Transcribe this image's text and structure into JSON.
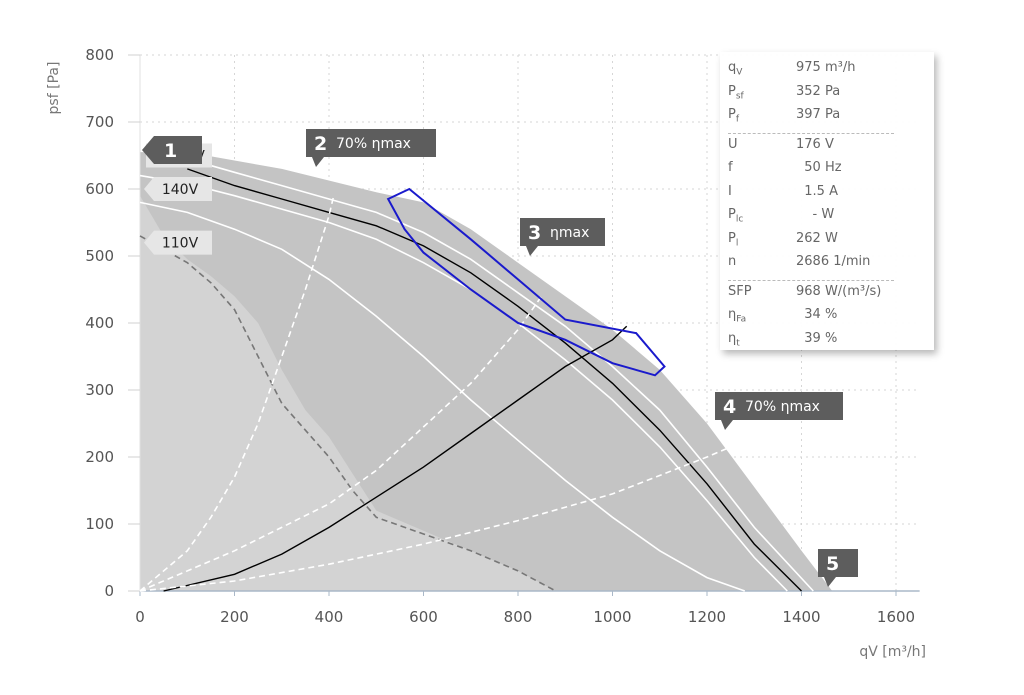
{
  "chart_data": {
    "type": "line",
    "xlabel": "qV [m³/h]",
    "ylabel": "psf [Pa]",
    "xlim": [
      0,
      1650
    ],
    "ylim": [
      0,
      800
    ],
    "x_ticks": [
      0,
      200,
      400,
      600,
      800,
      1000,
      1200,
      1400,
      1600
    ],
    "y_ticks": [
      0,
      100,
      200,
      300,
      400,
      500,
      600,
      700,
      800
    ],
    "grid": true,
    "operating_region": [
      [
        0,
        655
      ],
      [
        100,
        655
      ],
      [
        300,
        630
      ],
      [
        500,
        595
      ],
      [
        600,
        580
      ],
      [
        700,
        540
      ],
      [
        800,
        490
      ],
      [
        900,
        440
      ],
      [
        1000,
        390
      ],
      [
        1100,
        330
      ],
      [
        1200,
        250
      ],
      [
        1300,
        155
      ],
      [
        1400,
        60
      ],
      [
        1465,
        0
      ],
      [
        0,
        0
      ]
    ],
    "low_region": [
      [
        0,
        590
      ],
      [
        50,
        530
      ],
      [
        100,
        495
      ],
      [
        150,
        470
      ],
      [
        200,
        440
      ],
      [
        250,
        400
      ],
      [
        300,
        330
      ],
      [
        350,
        270
      ],
      [
        400,
        230
      ],
      [
        450,
        175
      ],
      [
        500,
        120
      ],
      [
        600,
        90
      ],
      [
        700,
        60
      ],
      [
        800,
        30
      ],
      [
        880,
        0
      ],
      [
        0,
        0
      ]
    ],
    "series": [
      {
        "name": "",
        "color": "#000000",
        "points": [
          [
            100,
            630
          ],
          [
            200,
            605
          ],
          [
            300,
            585
          ],
          [
            400,
            565
          ],
          [
            500,
            545
          ],
          [
            600,
            515
          ],
          [
            700,
            475
          ],
          [
            800,
            425
          ],
          [
            900,
            370
          ],
          [
            1000,
            310
          ],
          [
            1100,
            240
          ],
          [
            1200,
            160
          ],
          [
            1300,
            70
          ],
          [
            1400,
            0
          ]
        ]
      },
      {
        "name": "",
        "color": "#ffffff",
        "points": [
          [
            100,
            645
          ],
          [
            200,
            625
          ],
          [
            300,
            605
          ],
          [
            400,
            585
          ],
          [
            500,
            565
          ],
          [
            600,
            535
          ],
          [
            700,
            495
          ],
          [
            800,
            445
          ],
          [
            900,
            395
          ],
          [
            1000,
            335
          ],
          [
            1100,
            270
          ],
          [
            1200,
            185
          ],
          [
            1300,
            95
          ],
          [
            1425,
            0
          ]
        ]
      },
      {
        "name": "",
        "color": "#ffffff",
        "points": [
          [
            0,
            620
          ],
          [
            100,
            608
          ],
          [
            200,
            590
          ],
          [
            300,
            570
          ],
          [
            400,
            550
          ],
          [
            500,
            525
          ],
          [
            600,
            490
          ],
          [
            700,
            450
          ],
          [
            800,
            400
          ],
          [
            900,
            345
          ],
          [
            1000,
            285
          ],
          [
            1100,
            215
          ],
          [
            1200,
            135
          ],
          [
            1300,
            50
          ],
          [
            1370,
            0
          ]
        ]
      },
      {
        "name": "",
        "color": "#ffffff",
        "points": [
          [
            0,
            580
          ],
          [
            100,
            565
          ],
          [
            200,
            540
          ],
          [
            300,
            510
          ],
          [
            400,
            465
          ],
          [
            500,
            410
          ],
          [
            600,
            350
          ],
          [
            700,
            285
          ],
          [
            800,
            225
          ],
          [
            900,
            165
          ],
          [
            1000,
            110
          ],
          [
            1100,
            60
          ],
          [
            1200,
            20
          ],
          [
            1280,
            0
          ]
        ]
      },
      {
        "name": "",
        "color": "#777777",
        "dashed": true,
        "points": [
          [
            0,
            530
          ],
          [
            50,
            510
          ],
          [
            100,
            490
          ],
          [
            150,
            460
          ],
          [
            200,
            420
          ],
          [
            250,
            350
          ],
          [
            300,
            280
          ],
          [
            350,
            240
          ],
          [
            400,
            200
          ],
          [
            450,
            150
          ],
          [
            500,
            110
          ],
          [
            600,
            85
          ],
          [
            700,
            60
          ],
          [
            800,
            30
          ],
          [
            880,
            0
          ]
        ]
      },
      {
        "name": "",
        "color": "#000000",
        "points": [
          [
            50,
            0
          ],
          [
            200,
            25
          ],
          [
            300,
            55
          ],
          [
            400,
            95
          ],
          [
            500,
            140
          ],
          [
            600,
            185
          ],
          [
            700,
            235
          ],
          [
            800,
            285
          ],
          [
            900,
            335
          ],
          [
            1000,
            375
          ],
          [
            1030,
            395
          ]
        ]
      },
      {
        "name": "",
        "color": "#ffffff",
        "dashed": true,
        "points": [
          [
            0,
            0
          ],
          [
            100,
            60
          ],
          [
            150,
            110
          ],
          [
            200,
            170
          ],
          [
            250,
            250
          ],
          [
            300,
            350
          ],
          [
            350,
            450
          ],
          [
            400,
            560
          ],
          [
            410,
            590
          ]
        ]
      },
      {
        "name": "",
        "color": "#ffffff",
        "dashed": true,
        "points": [
          [
            0,
            0
          ],
          [
            200,
            60
          ],
          [
            400,
            130
          ],
          [
            500,
            180
          ],
          [
            600,
            245
          ],
          [
            700,
            310
          ],
          [
            800,
            390
          ],
          [
            850,
            440
          ]
        ]
      },
      {
        "name": "",
        "color": "#ffffff",
        "dashed": true,
        "points": [
          [
            0,
            0
          ],
          [
            200,
            15
          ],
          [
            400,
            40
          ],
          [
            600,
            70
          ],
          [
            800,
            105
          ],
          [
            1000,
            145
          ],
          [
            1200,
            200
          ],
          [
            1250,
            215
          ]
        ]
      }
    ],
    "optimal_zone": {
      "color": "#1a1acc",
      "points": [
        [
          525,
          585
        ],
        [
          570,
          600
        ],
        [
          700,
          525
        ],
        [
          800,
          465
        ],
        [
          900,
          405
        ],
        [
          1050,
          385
        ],
        [
          1110,
          335
        ],
        [
          1090,
          322
        ],
        [
          1000,
          340
        ],
        [
          900,
          375
        ],
        [
          800,
          400
        ],
        [
          700,
          450
        ],
        [
          600,
          505
        ],
        [
          560,
          540
        ]
      ]
    },
    "curve_labels": [
      {
        "text": "140V",
        "x": 75,
        "y": 600
      },
      {
        "text": "110V",
        "x": 75,
        "y": 520
      }
    ],
    "curve_label_partial": {
      "text": "V",
      "x": 110,
      "y": 650
    },
    "annotations": [
      {
        "num": "1",
        "text": "",
        "x": 0,
        "y": 655,
        "tx": 75,
        "ty": 665
      },
      {
        "num": "2",
        "text": "70% ηmax",
        "x": 390,
        "y": 655,
        "tx": 400,
        "ty": 665
      },
      {
        "num": "3",
        "text": "ηmax",
        "x": 825,
        "y": 500,
        "tx": 820,
        "ty": 535
      },
      {
        "num": "4",
        "text": "70% ηmax",
        "x": 1250,
        "y": 255,
        "tx": 1250,
        "ty": 280
      },
      {
        "num": "5",
        "text": "",
        "x": 1470,
        "y": 20,
        "tx": 1470,
        "ty": 45
      }
    ],
    "info_table": [
      [
        {
          "name": "q",
          "sub": "V",
          "value": "975 m³/h"
        },
        {
          "name": "P",
          "sub": "sf",
          "value": "352 Pa"
        },
        {
          "name": "P",
          "sub": "f",
          "value": "397 Pa"
        }
      ],
      [
        {
          "name": "U",
          "sub": "",
          "value": "176 V"
        },
        {
          "name": "f",
          "sub": "",
          "value": "  50 Hz"
        },
        {
          "name": "I",
          "sub": "",
          "value": "  1.5 A"
        },
        {
          "name": "P",
          "sub": "lc",
          "value": "    - W"
        },
        {
          "name": "P",
          "sub": "l",
          "value": "262 W"
        },
        {
          "name": "n",
          "sub": "",
          "value": "2686 1/min"
        }
      ],
      [
        {
          "name": "SFP",
          "sub": "",
          "value": "968 W/(m³/s)"
        },
        {
          "name": "η",
          "sub": "Fa",
          "value": "  34 %"
        },
        {
          "name": "η",
          "sub": "t",
          "value": "  39 %"
        }
      ]
    ]
  }
}
